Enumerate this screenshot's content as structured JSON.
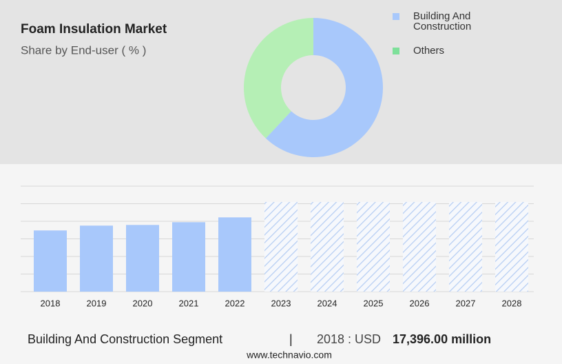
{
  "chart_data": [
    {
      "type": "pie",
      "title": "Foam Insulation Market",
      "subtitle": "Share by End-user ( % )",
      "categories": [
        "Building And Construction",
        "Others"
      ],
      "values": [
        62,
        38
      ],
      "colors": [
        "#a8c8fb",
        "#b5efb5"
      ],
      "legend_colors": [
        "#a8c8fb",
        "#7ee09a"
      ]
    },
    {
      "type": "bar",
      "categories": [
        "2018",
        "2019",
        "2020",
        "2021",
        "2022",
        "2023",
        "2024",
        "2025",
        "2026",
        "2027",
        "2028"
      ],
      "values": [
        17396,
        18768,
        18963,
        19745,
        21113,
        null,
        null,
        null,
        null,
        null,
        null
      ],
      "color": "#a8c8fb",
      "forecast_color": "#b5cdf3",
      "ylim": [
        0,
        30000
      ],
      "yticks": [
        0,
        5000,
        10000,
        15000,
        20000,
        25000,
        30000
      ],
      "grid": true
    }
  ],
  "footer": {
    "segment": "Building And Construction Segment",
    "separator": "|",
    "year_label": "2018 : USD",
    "value": "17,396.00 million",
    "source": "www.technavio.com"
  }
}
